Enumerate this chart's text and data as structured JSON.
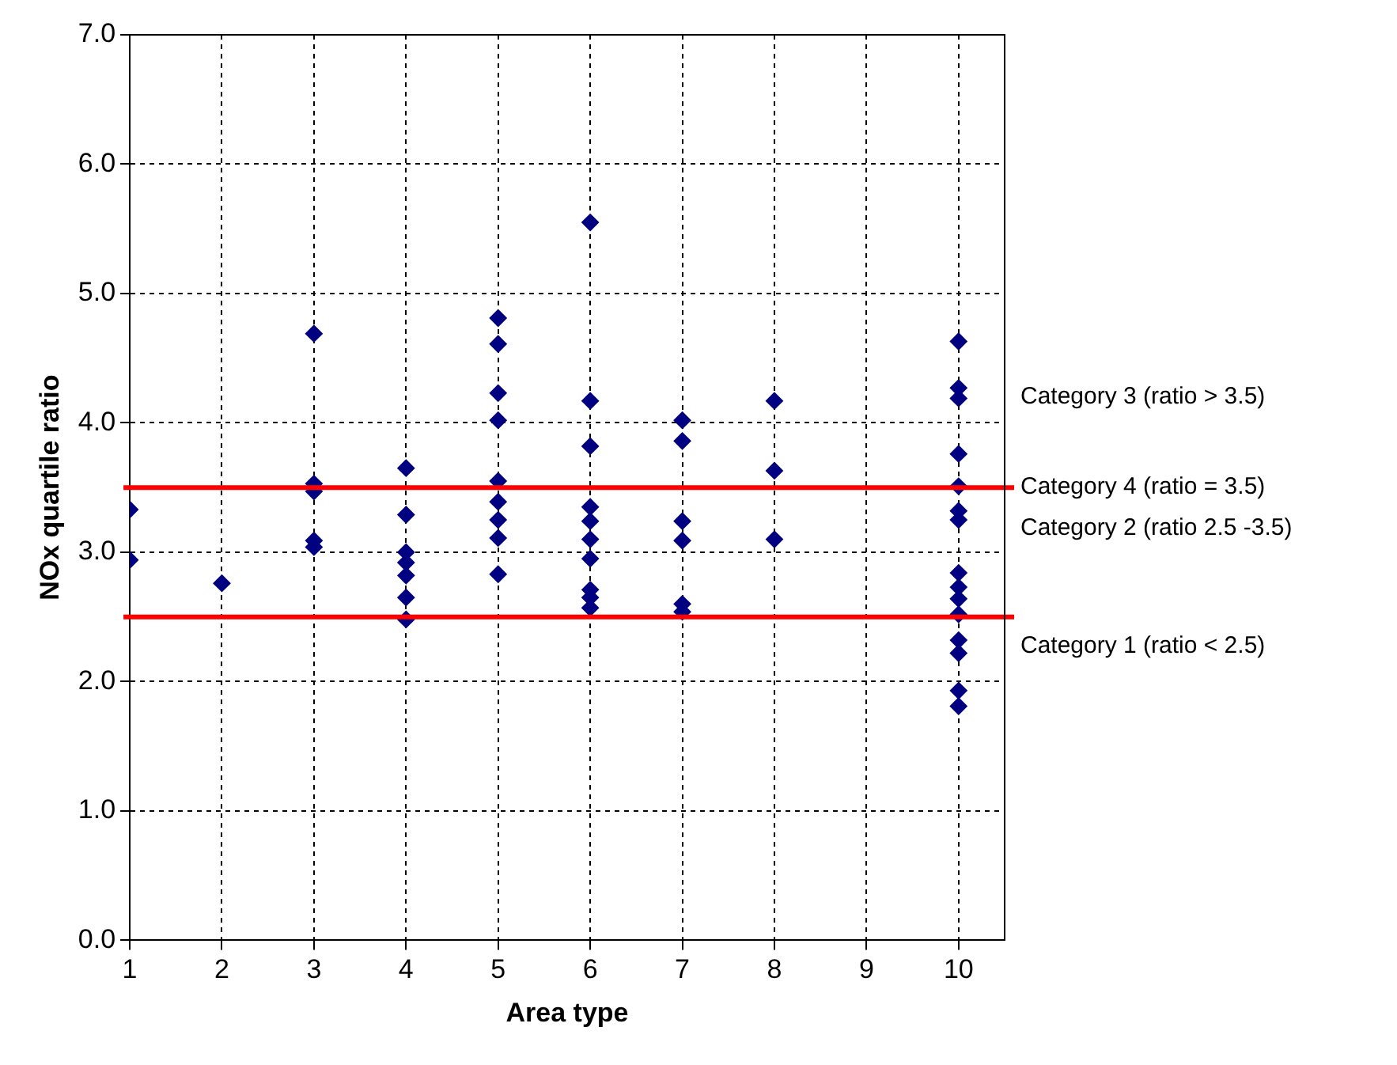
{
  "chart_data": {
    "type": "scatter",
    "xlabel": "Area type",
    "ylabel": "NOx quartile ratio",
    "x": [
      1,
      1,
      2,
      3,
      3,
      3,
      3,
      3,
      4,
      4,
      4,
      4,
      4,
      4,
      4,
      5,
      5,
      5,
      5,
      5,
      5,
      5,
      5,
      5,
      6,
      6,
      6,
      6,
      6,
      6,
      6,
      6,
      6,
      6,
      7,
      7,
      7,
      7,
      7,
      7,
      8,
      8,
      8,
      10,
      10,
      10,
      10,
      10,
      10,
      10,
      10,
      10,
      10,
      10,
      10,
      10,
      10,
      10
    ],
    "values": [
      3.33,
      2.94,
      2.76,
      4.69,
      3.53,
      3.47,
      3.09,
      3.04,
      3.65,
      3.29,
      3.0,
      2.92,
      2.82,
      2.65,
      2.48,
      4.81,
      4.61,
      4.23,
      4.02,
      3.55,
      3.39,
      3.25,
      3.11,
      2.83,
      5.55,
      4.17,
      3.82,
      3.35,
      3.24,
      3.1,
      2.95,
      2.71,
      2.65,
      2.57,
      4.02,
      3.86,
      3.24,
      3.09,
      2.6,
      2.54,
      4.17,
      3.63,
      3.1,
      4.63,
      4.27,
      4.19,
      3.76,
      3.51,
      3.32,
      3.25,
      2.84,
      2.73,
      2.64,
      2.52,
      2.32,
      2.22,
      1.93,
      1.81
    ],
    "color": "#000080",
    "marker": "diamond",
    "xlim": [
      1,
      10.5
    ],
    "xticks": [
      1,
      2,
      3,
      4,
      5,
      6,
      7,
      8,
      9,
      10
    ],
    "ylim": [
      0,
      7
    ],
    "yticks": [
      {
        "value": 0,
        "label": "0.0"
      },
      {
        "value": 1,
        "label": "1.0"
      },
      {
        "value": 2,
        "label": "2.0"
      },
      {
        "value": 3,
        "label": "3.0"
      },
      {
        "value": 4,
        "label": "4.0"
      },
      {
        "value": 5,
        "label": "5.0"
      },
      {
        "value": 6,
        "label": "6.0"
      },
      {
        "value": 7,
        "label": "7.0"
      }
    ],
    "grid": true,
    "legend": false,
    "ref_lines": [
      {
        "axis": "y",
        "value": 3.5,
        "color": "#ff0000",
        "label": "Category 4 (ratio = 3.5)"
      },
      {
        "axis": "y",
        "value": 2.5,
        "color": "#ff0000"
      }
    ],
    "annotations": [
      "Category 3 (ratio > 3.5)",
      "Category 2 (ratio 2.5 -3.5)",
      "Category 1 (ratio < 2.5)"
    ]
  }
}
